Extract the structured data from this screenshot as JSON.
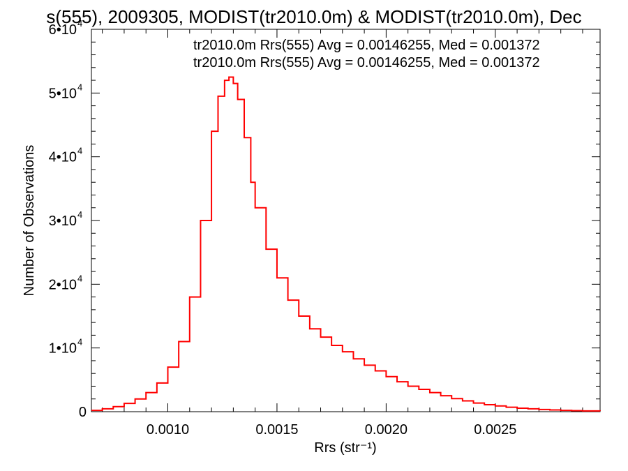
{
  "chart_data": {
    "type": "line",
    "title": "s(555), 2009305, MODIST(tr2010.0m) & MODIST(tr2010.0m), Dec",
    "xlabel": "Rrs (str⁻¹)",
    "ylabel": "Number of Observations",
    "xlim": [
      0.00065,
      0.00298
    ],
    "ylim": [
      0,
      60000
    ],
    "x_ticks": [
      {
        "value": 0.001,
        "label": "0.0010"
      },
      {
        "value": 0.0015,
        "label": "0.0015"
      },
      {
        "value": 0.002,
        "label": "0.0020"
      },
      {
        "value": 0.0025,
        "label": "0.0025"
      }
    ],
    "y_ticks": [
      {
        "value": 0,
        "label": "0",
        "exp": ""
      },
      {
        "value": 10000,
        "label": "1•10",
        "exp": "4"
      },
      {
        "value": 20000,
        "label": "2•10",
        "exp": "4"
      },
      {
        "value": 30000,
        "label": "3•10",
        "exp": "4"
      },
      {
        "value": 40000,
        "label": "4•10",
        "exp": "4"
      },
      {
        "value": 50000,
        "label": "5•10",
        "exp": "4"
      },
      {
        "value": 60000,
        "label": "6•10",
        "exp": "4"
      }
    ],
    "annotations": [
      {
        "text": "tr2010.0m Rrs(555) Avg = 0.00146255, Med = 0.001372",
        "color": "#000000"
      },
      {
        "text": "tr2010.0m Rrs(555) Avg = 0.00146255, Med = 0.001372",
        "color": "#ff0000"
      }
    ],
    "grid": false,
    "series": [
      {
        "color": "#ff0000",
        "style": "step",
        "x": [
          0.00065,
          0.0007,
          0.00075,
          0.0008,
          0.00085,
          0.0009,
          0.00095,
          0.001,
          0.00105,
          0.0011,
          0.00115,
          0.0012,
          0.00123,
          0.00126,
          0.00128,
          0.0013,
          0.00132,
          0.00135,
          0.00138,
          0.0014,
          0.00145,
          0.0015,
          0.00155,
          0.0016,
          0.00165,
          0.0017,
          0.00175,
          0.0018,
          0.00185,
          0.0019,
          0.00195,
          0.002,
          0.00205,
          0.0021,
          0.00215,
          0.0022,
          0.00225,
          0.0023,
          0.00235,
          0.0024,
          0.00245,
          0.0025,
          0.00255,
          0.0026,
          0.00265,
          0.0027,
          0.00275,
          0.0028,
          0.00285,
          0.0029,
          0.00298
        ],
        "y": [
          200,
          450,
          800,
          1300,
          2000,
          3000,
          4500,
          7000,
          11000,
          18000,
          30000,
          44000,
          49500,
          52000,
          52500,
          51500,
          49000,
          43000,
          36000,
          32000,
          25500,
          21000,
          17500,
          15000,
          13000,
          11700,
          10400,
          9400,
          8300,
          7300,
          6400,
          5500,
          4700,
          4000,
          3500,
          3000,
          2500,
          2050,
          1700,
          1350,
          1100,
          900,
          700,
          550,
          450,
          340,
          270,
          210,
          160,
          120,
          90
        ]
      }
    ]
  }
}
